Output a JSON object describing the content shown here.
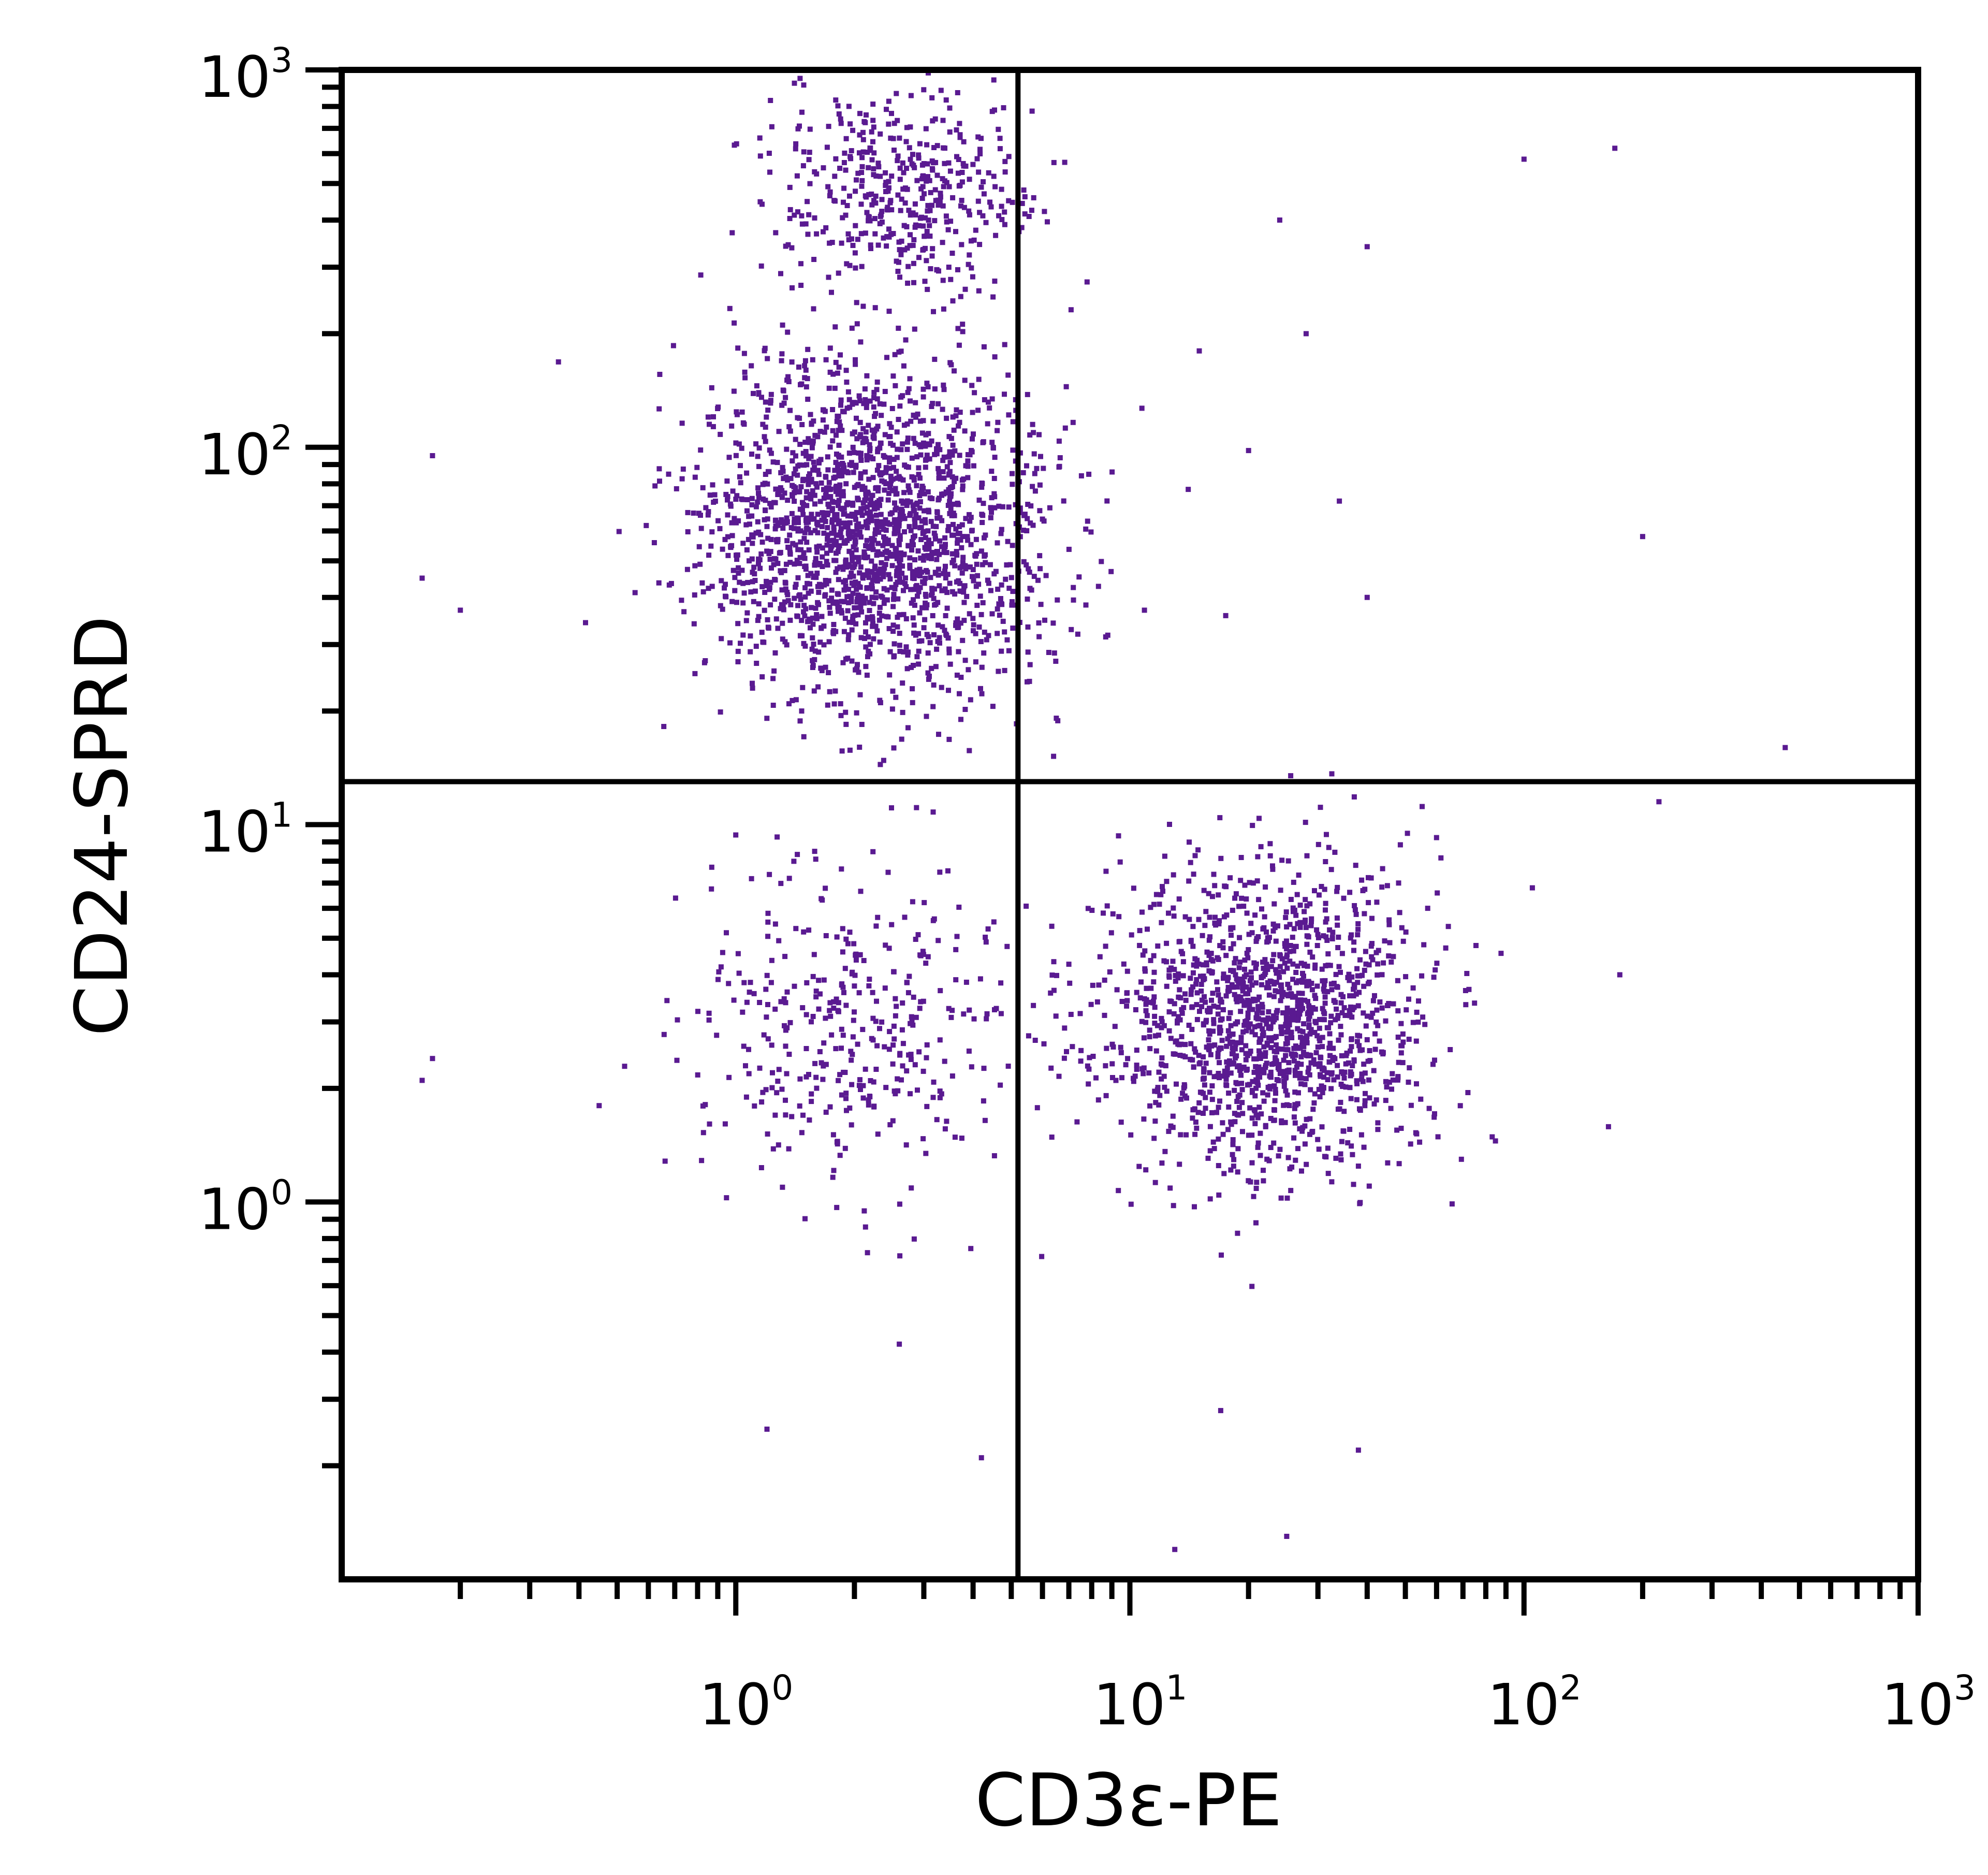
{
  "chart_data": {
    "type": "scatter",
    "title": "",
    "xlabel": "CD3ε-PE",
    "ylabel": "CD24-SPRD",
    "x_scale": "log",
    "y_scale": "log",
    "xlim": [
      0.1,
      1000
    ],
    "ylim": [
      0.1,
      1000
    ],
    "x_ticks": [
      {
        "base": "10",
        "exp": "0",
        "value": 1
      },
      {
        "base": "10",
        "exp": "1",
        "value": 10
      },
      {
        "base": "10",
        "exp": "2",
        "value": 100
      },
      {
        "base": "10",
        "exp": "3",
        "value": 1000
      }
    ],
    "y_ticks": [
      {
        "base": "10",
        "exp": "0",
        "value": 1
      },
      {
        "base": "10",
        "exp": "1",
        "value": 10
      },
      {
        "base": "10",
        "exp": "2",
        "value": 100
      },
      {
        "base": "10",
        "exp": "3",
        "value": 1000
      }
    ],
    "quadrant_gates": {
      "x": 5.2,
      "y": 13
    },
    "grid": false,
    "point_color": "#5a1a91",
    "clusters": [
      {
        "name": "cluster-upper-left",
        "center_x": 2.2,
        "center_y": 60,
        "sd_log_x": 0.22,
        "sd_log_y": 0.22,
        "count": 2000
      },
      {
        "name": "cluster-upper-left-top",
        "center_x": 2.6,
        "center_y": 480,
        "sd_log_x": 0.17,
        "sd_log_y": 0.14,
        "count": 450
      },
      {
        "name": "cluster-lower-right",
        "center_x": 22,
        "center_y": 3.0,
        "sd_log_x": 0.2,
        "sd_log_y": 0.2,
        "count": 1500
      },
      {
        "name": "cluster-lower-left",
        "center_x": 2.0,
        "center_y": 2.8,
        "sd_log_x": 0.2,
        "sd_log_y": 0.22,
        "count": 380
      }
    ],
    "outliers": [
      [
        100,
        580
      ],
      [
        170,
        620
      ],
      [
        200,
        58
      ],
      [
        460,
        16
      ],
      [
        220,
        11.5
      ],
      [
        105,
        6.8
      ],
      [
        175,
        4.0
      ],
      [
        24,
        400
      ],
      [
        40,
        340
      ],
      [
        28,
        200
      ],
      [
        20,
        98
      ],
      [
        34,
        72
      ],
      [
        40,
        40
      ],
      [
        15,
        180
      ],
      [
        0.17,
        95
      ],
      [
        0.16,
        45
      ],
      [
        0.2,
        37
      ],
      [
        0.17,
        2.4
      ],
      [
        0.16,
        2.1
      ],
      [
        0.45,
        1.8
      ],
      [
        1.2,
        0.25
      ],
      [
        2.6,
        0.42
      ],
      [
        4.2,
        0.21
      ],
      [
        13,
        0.12
      ],
      [
        17,
        0.28
      ],
      [
        25,
        0.13
      ],
      [
        38,
        0.22
      ]
    ]
  }
}
